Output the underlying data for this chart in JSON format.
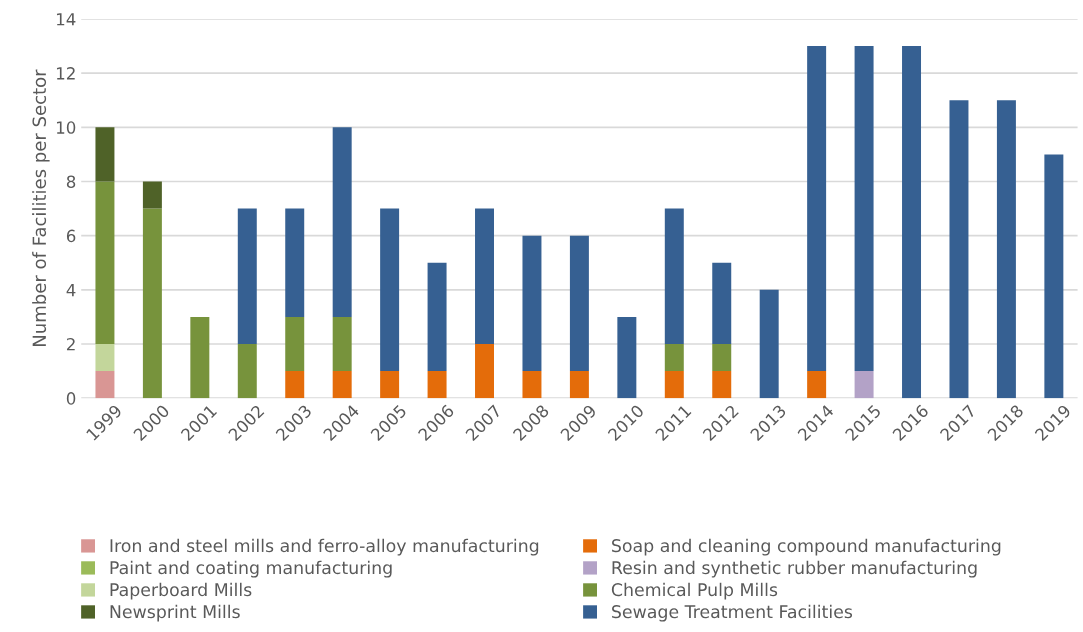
{
  "chart_data": {
    "type": "bar",
    "stacked": true,
    "ylabel": "Number of Facilities per Sector",
    "categories": [
      "1999",
      "2000",
      "2001",
      "2002",
      "2003",
      "2004",
      "2005",
      "2006",
      "2007",
      "2008",
      "2009",
      "2010",
      "2011",
      "2012",
      "2013",
      "2014",
      "2015",
      "2016",
      "2017",
      "2018",
      "2019"
    ],
    "series": [
      {
        "name": "Iron and steel mills and ferro-alloy manufacturing",
        "color": "#d99694",
        "values": [
          1,
          0,
          0,
          0,
          0,
          0,
          0,
          0,
          0,
          0,
          0,
          0,
          0,
          0,
          0,
          0,
          0,
          0,
          0,
          0,
          0
        ]
      },
      {
        "name": "Soap and cleaning compound manufacturing",
        "color": "#e46c0a",
        "values": [
          0,
          0,
          0,
          0,
          1,
          1,
          1,
          1,
          2,
          1,
          1,
          0,
          1,
          1,
          0,
          1,
          0,
          0,
          0,
          0,
          0
        ]
      },
      {
        "name": "Paint and coating manufacturing",
        "color": "#9bbb59",
        "values": [
          0,
          0,
          0,
          0,
          0,
          0,
          0,
          0,
          0,
          0,
          0,
          0,
          0,
          0,
          0,
          0,
          0,
          0,
          0,
          0,
          0
        ]
      },
      {
        "name": "Resin and synthetic rubber manufacturing",
        "color": "#b3a2c7",
        "values": [
          0,
          0,
          0,
          0,
          0,
          0,
          0,
          0,
          0,
          0,
          0,
          0,
          0,
          0,
          0,
          0,
          1,
          0,
          0,
          0,
          0
        ]
      },
      {
        "name": "Paperboard Mills",
        "color": "#c3d69b",
        "values": [
          1,
          0,
          0,
          0,
          0,
          0,
          0,
          0,
          0,
          0,
          0,
          0,
          0,
          0,
          0,
          0,
          0,
          0,
          0,
          0,
          0
        ]
      },
      {
        "name": "Chemical Pulp Mills",
        "color": "#77933c",
        "values": [
          6,
          7,
          3,
          2,
          2,
          2,
          0,
          0,
          0,
          0,
          0,
          0,
          1,
          1,
          0,
          0,
          0,
          0,
          0,
          0,
          0
        ]
      },
      {
        "name": "Newsprint Mills",
        "color": "#4f6228",
        "values": [
          2,
          1,
          0,
          0,
          0,
          0,
          0,
          0,
          0,
          0,
          0,
          0,
          0,
          0,
          0,
          0,
          0,
          0,
          0,
          0,
          0
        ]
      },
      {
        "name": "Sewage Treatment Facilities",
        "color": "#366092",
        "values": [
          0,
          0,
          0,
          5,
          4,
          7,
          6,
          4,
          5,
          5,
          5,
          3,
          5,
          3,
          4,
          12,
          12,
          13,
          11,
          11,
          9
        ]
      }
    ],
    "ylim": [
      0,
      14
    ],
    "yticks": [
      0,
      2,
      4,
      6,
      8,
      10,
      12,
      14
    ],
    "grid": "y",
    "legend": "bottom"
  }
}
